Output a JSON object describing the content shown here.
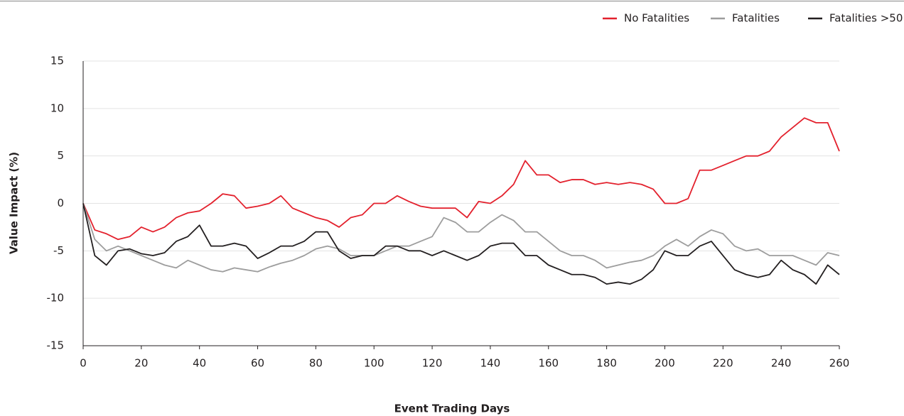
{
  "chart_data": {
    "type": "line",
    "x_label": "Event Trading Days",
    "y_label": "Value Impact (%)",
    "x": [
      0,
      4,
      8,
      12,
      16,
      20,
      24,
      28,
      32,
      36,
      40,
      44,
      48,
      52,
      56,
      60,
      64,
      68,
      72,
      76,
      80,
      84,
      88,
      92,
      96,
      100,
      104,
      108,
      112,
      116,
      120,
      124,
      128,
      132,
      136,
      140,
      144,
      148,
      152,
      156,
      160,
      164,
      168,
      172,
      176,
      180,
      184,
      188,
      192,
      196,
      200,
      204,
      208,
      212,
      216,
      220,
      224,
      228,
      232,
      236,
      240,
      244,
      248,
      252,
      256,
      260
    ],
    "series": [
      {
        "name": "No Fatalities",
        "color": "#e3212d",
        "values": [
          0,
          -2.8,
          -3.2,
          -3.8,
          -3.5,
          -2.5,
          -3,
          -2.5,
          -1.5,
          -1,
          -0.8,
          0,
          1,
          0.8,
          -0.5,
          -0.3,
          0,
          0.8,
          -0.5,
          -1,
          -1.5,
          -1.8,
          -2.5,
          -1.5,
          -1.2,
          0,
          0,
          0.8,
          0.2,
          -0.3,
          -0.5,
          -0.5,
          -0.5,
          -1.5,
          0.2,
          0,
          0.8,
          2,
          4.5,
          3,
          3,
          2.2,
          2.5,
          2.5,
          2,
          2.2,
          2,
          2.2,
          2,
          1.5,
          0,
          0,
          0.5,
          3.5,
          3.5,
          4,
          4.5,
          5,
          5,
          5.5,
          7,
          8,
          9,
          8.5,
          8.5,
          5.5
        ]
      },
      {
        "name": "Fatalities",
        "color": "#9d9d9d",
        "values": [
          0,
          -3.8,
          -5,
          -4.5,
          -5,
          -5.5,
          -6,
          -6.5,
          -6.8,
          -6,
          -6.5,
          -7,
          -7.2,
          -6.8,
          -7,
          -7.2,
          -6.7,
          -6.3,
          -6,
          -5.5,
          -4.8,
          -4.5,
          -4.8,
          -5.5,
          -5.5,
          -5.5,
          -5,
          -4.5,
          -4.5,
          -4,
          -3.5,
          -1.5,
          -2,
          -3,
          -3,
          -2,
          -1.2,
          -1.8,
          -3,
          -3,
          -4,
          -5,
          -5.5,
          -5.5,
          -6,
          -6.8,
          -6.5,
          -6.2,
          -6,
          -5.5,
          -4.5,
          -3.8,
          -4.5,
          -3.5,
          -2.8,
          -3.2,
          -4.5,
          -5,
          -4.8,
          -5.5,
          -5.5,
          -5.5,
          -6,
          -6.5,
          -5.2,
          -5.5
        ]
      },
      {
        "name": "Fatalities >50",
        "color": "#231f20",
        "values": [
          0,
          -5.5,
          -6.5,
          -5,
          -4.8,
          -5.3,
          -5.5,
          -5.2,
          -4,
          -3.5,
          -2.3,
          -4.5,
          -4.5,
          -4.2,
          -4.5,
          -5.8,
          -5.2,
          -4.5,
          -4.5,
          -4,
          -3,
          -3,
          -5,
          -5.8,
          -5.5,
          -5.5,
          -4.5,
          -4.5,
          -5,
          -5,
          -5.5,
          -5,
          -5.5,
          -6,
          -5.5,
          -4.5,
          -4.2,
          -4.2,
          -5.5,
          -5.5,
          -6.5,
          -7,
          -7.5,
          -7.5,
          -7.8,
          -8.5,
          -8.3,
          -8.5,
          -8,
          -7,
          -5,
          -5.5,
          -5.5,
          -4.5,
          -4,
          -5.5,
          -7,
          -7.5,
          -7.8,
          -7.5,
          -6,
          -7,
          -7.5,
          -8.5,
          -6.5,
          -7.5
        ]
      }
    ],
    "xlim": [
      0,
      260
    ],
    "xticks": [
      0,
      20,
      40,
      60,
      80,
      100,
      120,
      140,
      160,
      180,
      200,
      220,
      240,
      260
    ],
    "ylim": [
      -15,
      15
    ],
    "yticks": [
      -15,
      -10,
      -5,
      0,
      5,
      10,
      15
    ],
    "grid": true,
    "legend": "top-right"
  }
}
